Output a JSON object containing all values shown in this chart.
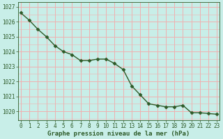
{
  "x": [
    0,
    1,
    2,
    3,
    4,
    5,
    6,
    7,
    8,
    9,
    10,
    11,
    12,
    13,
    14,
    15,
    16,
    17,
    18,
    19,
    20,
    21,
    22,
    23
  ],
  "y": [
    1026.6,
    1026.1,
    1025.5,
    1025.0,
    1024.4,
    1024.0,
    1023.8,
    1023.4,
    1023.4,
    1023.5,
    1023.5,
    1023.2,
    1022.8,
    1021.7,
    1021.1,
    1020.5,
    1020.4,
    1020.3,
    1020.3,
    1020.4,
    1019.9,
    1019.9,
    1019.85,
    1019.8
  ],
  "line_color": "#2d5a27",
  "marker": "D",
  "marker_size": 2.5,
  "linewidth": 1.0,
  "bg_color": "#c8eee8",
  "plot_bg_color": "#c8eee8",
  "grid_major_color": "#f0b0b0",
  "grid_minor_color": "#f0b0b0",
  "xlabel": "Graphe pression niveau de la mer (hPa)",
  "xlabel_fontsize": 6.5,
  "xlabel_color": "#2d5a27",
  "tick_color": "#2d5a27",
  "tick_fontsize": 5.5,
  "ylim": [
    1019.4,
    1027.3
  ],
  "yticks": [
    1020,
    1021,
    1022,
    1023,
    1024,
    1025,
    1026,
    1027
  ],
  "xlim": [
    -0.3,
    23.3
  ],
  "xticks": [
    0,
    1,
    2,
    3,
    4,
    5,
    6,
    7,
    8,
    9,
    10,
    11,
    12,
    13,
    14,
    15,
    16,
    17,
    18,
    19,
    20,
    21,
    22,
    23
  ]
}
